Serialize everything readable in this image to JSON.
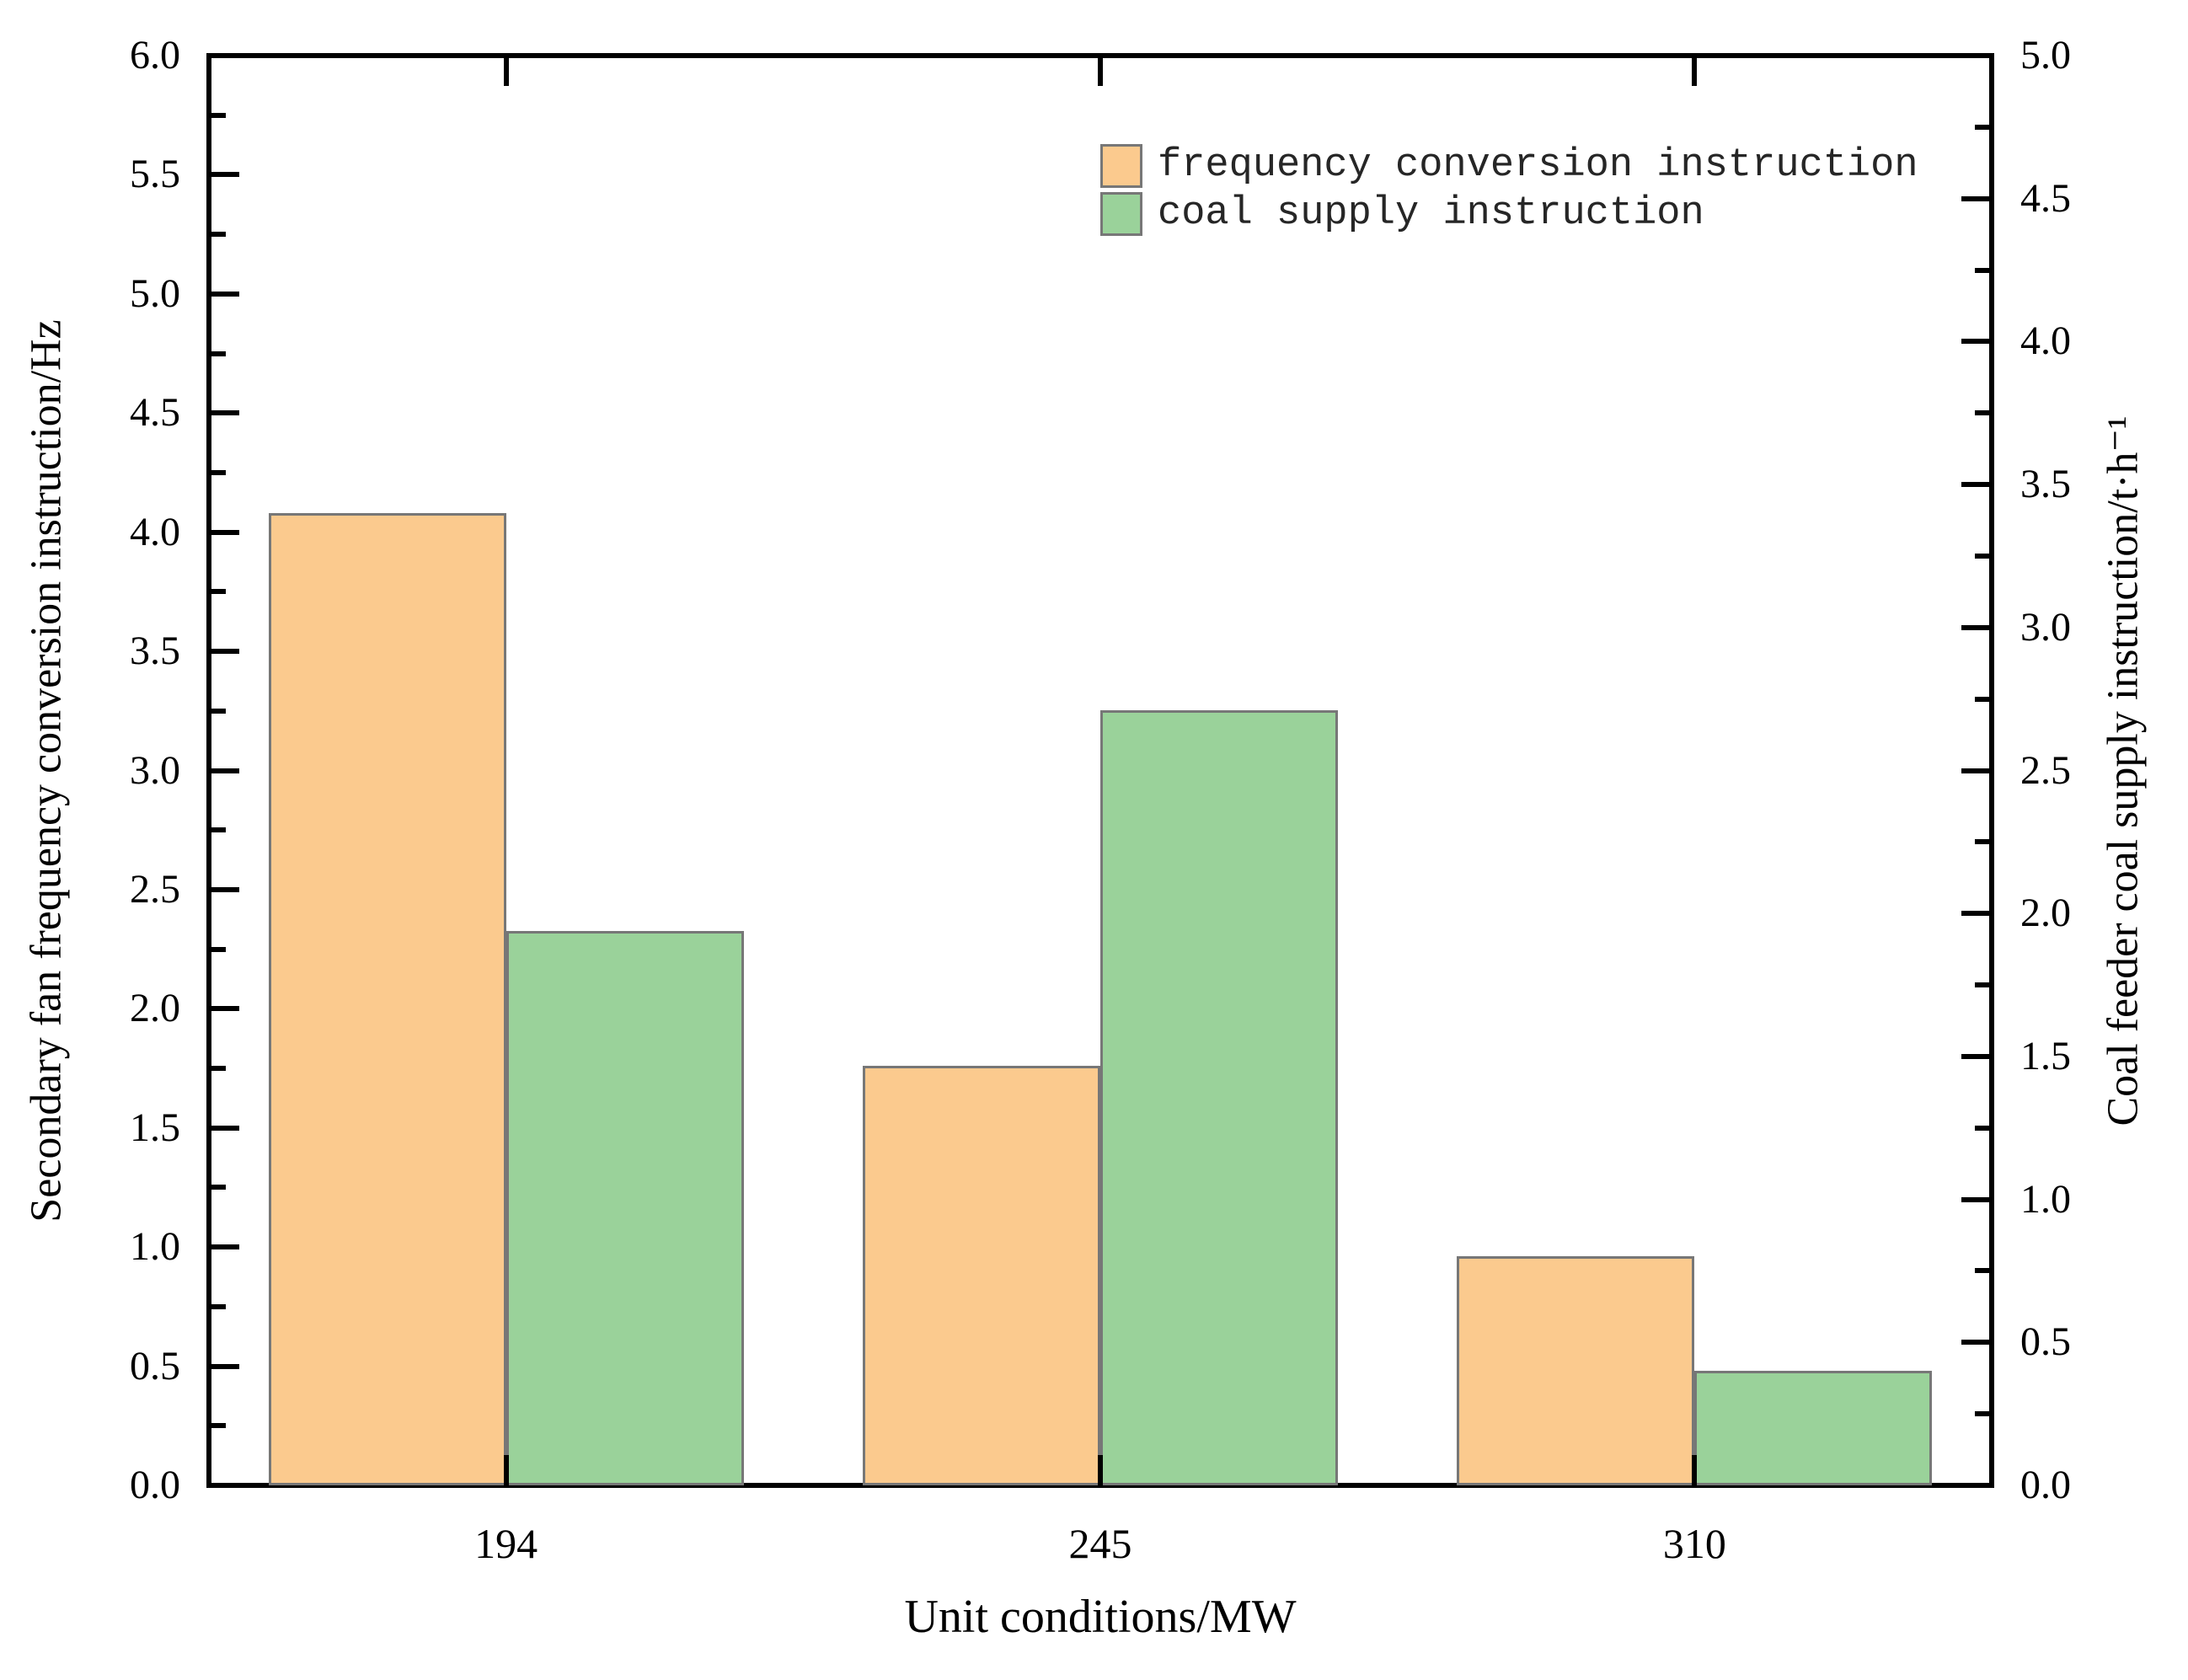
{
  "chart_data": {
    "type": "bar",
    "title": "",
    "categories": [
      "194",
      "245",
      "310"
    ],
    "series": [
      {
        "name": "frequency conversion instruction",
        "axis": "left",
        "values": [
          4.08,
          1.76,
          0.96
        ],
        "color": "#FBCA8E",
        "border_color": "#777777"
      },
      {
        "name": "coal supply instruction",
        "axis": "right",
        "values": [
          1.94,
          2.71,
          0.4
        ],
        "color": "#9AD29A",
        "border_color": "#777777"
      }
    ],
    "xlabel": "Unit conditions/MW",
    "left_axis": {
      "label": "Secondary fan frequency conversion instruction/Hz",
      "min": 0,
      "max": 6,
      "major_step": 0.5,
      "minor_step": 0.25,
      "tick_labels": [
        "0.0",
        "0.5",
        "1.0",
        "1.5",
        "2.0",
        "2.5",
        "3.0",
        "3.5",
        "4.0",
        "4.5",
        "5.0",
        "5.5",
        "6.0"
      ]
    },
    "right_axis": {
      "label": "Coal feeder coal supply instruction/t·h⁻¹",
      "min": 0,
      "max": 5,
      "major_step": 0.5,
      "minor_step": 0.25,
      "tick_labels": [
        "0.0",
        "0.5",
        "1.0",
        "1.5",
        "2.0",
        "2.5",
        "3.0",
        "3.5",
        "4.0",
        "4.5",
        "5.0"
      ]
    },
    "legend_position": "top-right",
    "grid": false,
    "axis_color": "#000000",
    "background_color": "#ffffff"
  }
}
